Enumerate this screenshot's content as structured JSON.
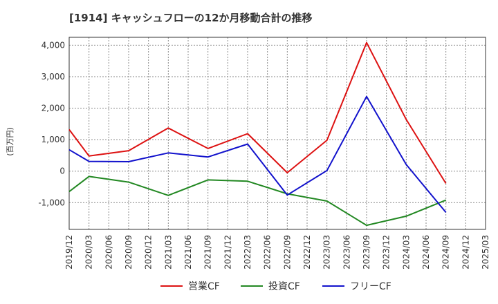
{
  "chart_data": {
    "type": "line",
    "title": "[1914]  キャッシュフローの12か月移動合計の推移",
    "ylabel": "(百万円)",
    "xlabel": "",
    "ylim": [
      -1850,
      4250
    ],
    "yticks": [
      -1000,
      0,
      1000,
      2000,
      3000,
      4000
    ],
    "ytick_labels": [
      "-1,000",
      "0",
      "1,000",
      "2,000",
      "3,000",
      "4,000"
    ],
    "categories": [
      "2019/12",
      "2020/03",
      "2020/06",
      "2020/09",
      "2020/12",
      "2021/03",
      "2021/06",
      "2021/09",
      "2021/12",
      "2022/03",
      "2022/06",
      "2022/09",
      "2022/12",
      "2023/03",
      "2023/06",
      "2023/09",
      "2023/12",
      "2024/03",
      "2024/06",
      "2024/09",
      "2024/12",
      "2025/03"
    ],
    "grid": true,
    "legend_position": "bottom",
    "series": [
      {
        "name": "営業CF",
        "color": "#dd1111",
        "values": [
          1320,
          480,
          null,
          650,
          null,
          1370,
          null,
          720,
          null,
          1190,
          null,
          -50,
          null,
          980,
          null,
          4080,
          null,
          1640,
          null,
          -390,
          null,
          null
        ]
      },
      {
        "name": "投資CF",
        "color": "#228822",
        "values": [
          -650,
          -170,
          null,
          -350,
          null,
          -770,
          null,
          -280,
          null,
          -320,
          null,
          -720,
          null,
          -950,
          null,
          -1720,
          null,
          -1430,
          null,
          -920,
          null,
          null
        ]
      },
      {
        "name": "フリーCF",
        "color": "#1111cc",
        "values": [
          680,
          310,
          null,
          300,
          null,
          580,
          null,
          450,
          null,
          860,
          null,
          -760,
          null,
          20,
          null,
          2370,
          null,
          210,
          null,
          -1310,
          null,
          null
        ]
      }
    ]
  }
}
